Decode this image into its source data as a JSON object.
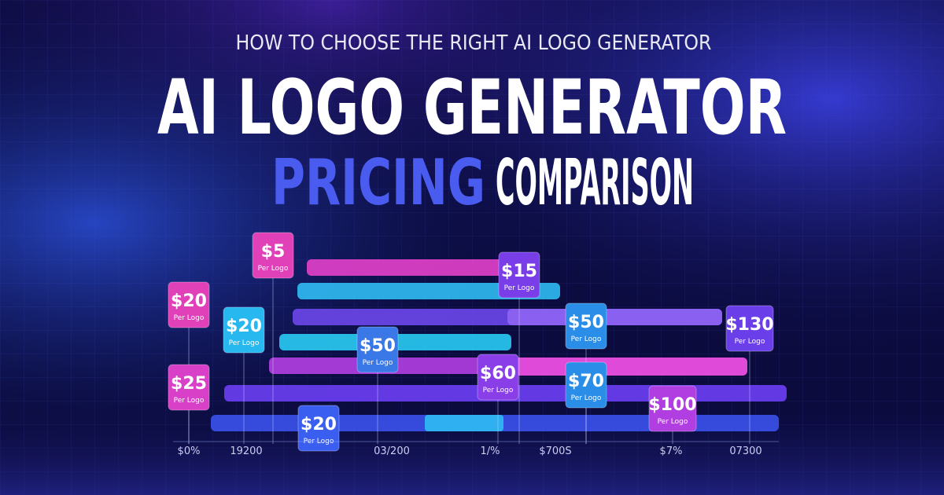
{
  "header": {
    "kicker": "HOW TO CHOOSE THE RIGHT AI LOGO GENERATOR",
    "title": "AI LOGO GENERATOR",
    "highlight": "PRICING",
    "rest": "COMPARISON"
  },
  "tags": [
    {
      "price": "$5",
      "note": "Per Logo"
    },
    {
      "price": "$15",
      "note": "Per Logo"
    },
    {
      "price": "$20",
      "note": "Per Logo"
    },
    {
      "price": "$20",
      "note": "Per Logo"
    },
    {
      "price": "$50",
      "note": "Per Logo"
    },
    {
      "price": "$130",
      "note": "Per Logo"
    },
    {
      "price": "$50",
      "note": "Per Logo"
    },
    {
      "price": "$60",
      "note": "Per Logo"
    },
    {
      "price": "$25",
      "note": "Per Logo"
    },
    {
      "price": "$70",
      "note": "Per Logo"
    },
    {
      "price": "$100",
      "note": "Per Logo"
    },
    {
      "price": "$20",
      "note": "Per Logo"
    }
  ],
  "axis_labels": [
    "$0%",
    "19200",
    "03/200",
    "1/%",
    "$700S",
    "$7%",
    "07300"
  ]
}
